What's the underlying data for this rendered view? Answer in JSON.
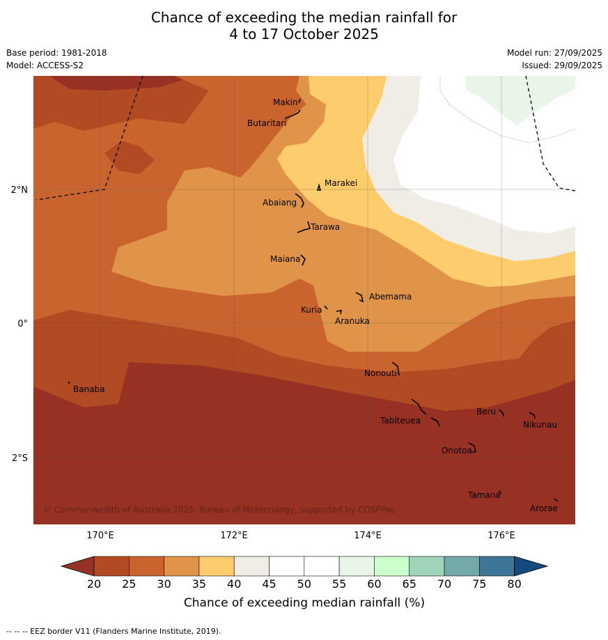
{
  "title_line1": "Chance of exceeding the median rainfall for",
  "title_line2": "4 to 17 October 2025",
  "base_period": "Base period: 1981-2018",
  "model": "Model: ACCESS-S2",
  "model_run": "Model run: 27/09/2025",
  "issued": "Issued: 29/09/2025",
  "lat_labels": [
    "2°N",
    "0°",
    "2°S"
  ],
  "lon_labels": [
    "170°E",
    "172°E",
    "174°E",
    "176°E"
  ],
  "places": [
    {
      "name": "Makin",
      "lon": 173.0,
      "lat": 3.4
    },
    {
      "name": "Butaritari",
      "lon": 172.8,
      "lat": 3.1
    },
    {
      "name": "Marakei",
      "lon": 173.3,
      "lat": 2.0
    },
    {
      "name": "Abaiang",
      "lon": 172.9,
      "lat": 1.8
    },
    {
      "name": "Tarawa",
      "lon": 173.0,
      "lat": 1.4
    },
    {
      "name": "Maiana",
      "lon": 172.9,
      "lat": 0.95
    },
    {
      "name": "Abemama",
      "lon": 173.9,
      "lat": 0.4
    },
    {
      "name": "Kuria",
      "lon": 173.4,
      "lat": 0.2
    },
    {
      "name": "Aranuka",
      "lon": 173.6,
      "lat": 0.15
    },
    {
      "name": "Nonouti",
      "lon": 174.4,
      "lat": -0.6
    },
    {
      "name": "Banaba",
      "lon": 169.5,
      "lat": -0.9
    },
    {
      "name": "Tabiteuea",
      "lon": 174.8,
      "lat": -1.3
    },
    {
      "name": "Beru",
      "lon": 175.9,
      "lat": -1.4
    },
    {
      "name": "Nikunau",
      "lon": 176.5,
      "lat": -1.4
    },
    {
      "name": "Onotoa",
      "lon": 175.6,
      "lat": -1.8
    },
    {
      "name": "Tamana",
      "lon": 175.9,
      "lat": -2.5
    },
    {
      "name": "Arorae",
      "lon": 176.8,
      "lat": -2.6
    }
  ],
  "copyright": "© Commonwealth of Australia 2025, Bureau of Meteorology, supported by COSPPac",
  "colorbar": {
    "ticks": [
      "20",
      "25",
      "30",
      "35",
      "40",
      "45",
      "50",
      "55",
      "60",
      "65",
      "70",
      "75",
      "80"
    ],
    "colors": [
      "#963123",
      "#b24a23",
      "#c9642f",
      "#e0944a",
      "#fdcc6c",
      "#f0ece6",
      "#ffffff",
      "#ffffff",
      "#eaf5ea",
      "#ccffcc",
      "#a0d4b8",
      "#73a9a8",
      "#3f7698",
      "#164a7f"
    ],
    "label": "Chance of exceeding median rainfall (%)"
  },
  "footer": "--  --  -- EEZ border V11 (Flanders Marine Institute, 2019)."
}
